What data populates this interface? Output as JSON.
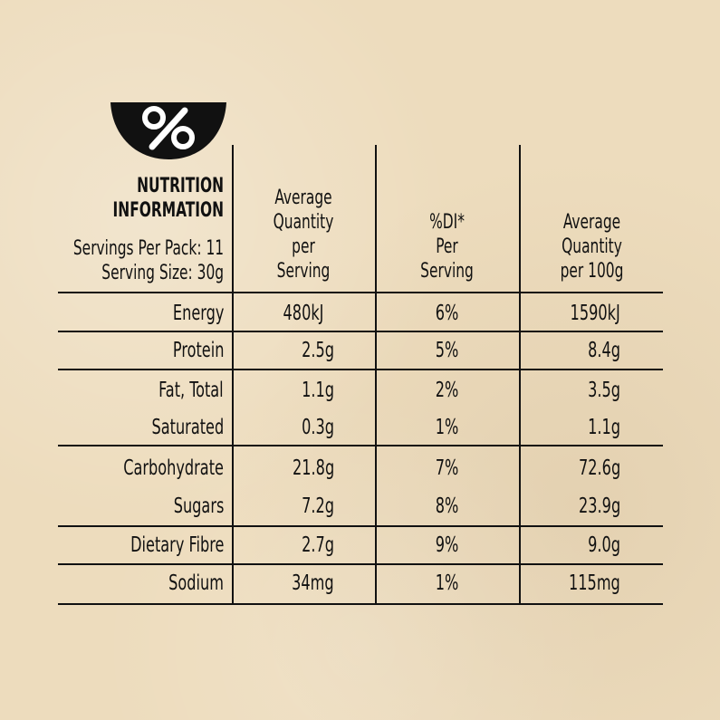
{
  "icon": "percent-bowl-icon",
  "header": {
    "title_line1": "NUTRITION",
    "title_line2": "INFORMATION",
    "servings_per_pack": "Servings Per Pack: 11",
    "serving_size": "Serving Size: 30g",
    "col_serving": [
      "Average",
      "Quantity",
      "per",
      "Serving"
    ],
    "col_di": [
      "%DI*",
      "Per",
      "Serving"
    ],
    "col_100g": [
      "Average",
      "Quantity",
      "per 100g"
    ]
  },
  "rows": [
    {
      "label": "Energy",
      "serving": "480kJ",
      "di": "6%",
      "per100": "1590kJ"
    },
    {
      "label": "Protein",
      "serving": "2.5g",
      "di": "5%",
      "per100": "8.4g"
    },
    {
      "label": "Fat, Total",
      "serving": "1.1g",
      "di": "2%",
      "per100": "3.5g"
    },
    {
      "label": "Saturated",
      "serving": "0.3g",
      "di": "1%",
      "per100": "1.1g"
    },
    {
      "label": "Carbohydrate",
      "serving": "21.8g",
      "di": "7%",
      "per100": "72.6g"
    },
    {
      "label": "Sugars",
      "serving": "7.2g",
      "di": "8%",
      "per100": "23.9g"
    },
    {
      "label": "Dietary Fibre",
      "serving": "2.7g",
      "di": "9%",
      "per100": "9.0g"
    },
    {
      "label": "Sodium",
      "serving": "34mg",
      "di": "1%",
      "per100": "115mg"
    }
  ]
}
